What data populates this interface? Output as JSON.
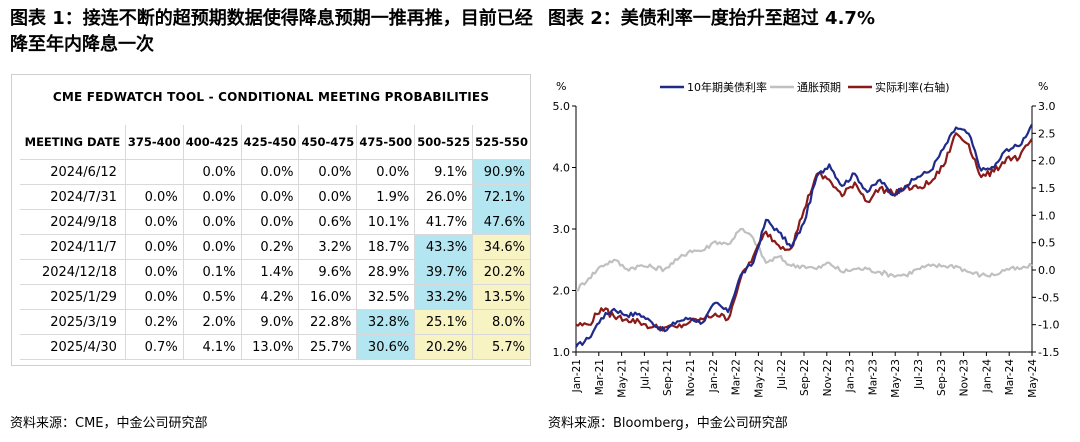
{
  "fig1": {
    "title": "图表 1：接连不断的超预期数据使得降息预期一推再推，目前已经降至年内降息一次",
    "tool_title": "CME FEDWATCH TOOL - CONDITIONAL MEETING PROBABILITIES",
    "source": "资料来源：CME，中金公司研究部",
    "headers": [
      "MEETING DATE",
      "375-400",
      "400-425",
      "425-450",
      "450-475",
      "475-500",
      "500-525",
      "525-550"
    ],
    "rows": [
      {
        "date": "2024/6/12",
        "values": [
          "",
          "0.0%",
          "0.0%",
          "0.0%",
          "0.0%",
          "9.1%",
          "90.9%"
        ]
      },
      {
        "date": "2024/7/31",
        "values": [
          "0.0%",
          "0.0%",
          "0.0%",
          "0.0%",
          "1.9%",
          "26.0%",
          "72.1%"
        ]
      },
      {
        "date": "2024/9/18",
        "values": [
          "0.0%",
          "0.0%",
          "0.0%",
          "0.6%",
          "10.1%",
          "41.7%",
          "47.6%"
        ]
      },
      {
        "date": "2024/11/7",
        "values": [
          "0.0%",
          "0.0%",
          "0.2%",
          "3.2%",
          "18.7%",
          "43.3%",
          "34.6%"
        ]
      },
      {
        "date": "2024/12/18",
        "values": [
          "0.0%",
          "0.1%",
          "1.4%",
          "9.6%",
          "28.9%",
          "39.7%",
          "20.2%"
        ]
      },
      {
        "date": "2025/1/29",
        "values": [
          "0.0%",
          "0.5%",
          "4.2%",
          "16.0%",
          "32.5%",
          "33.2%",
          "13.5%"
        ]
      },
      {
        "date": "2025/3/19",
        "values": [
          "0.2%",
          "2.0%",
          "9.0%",
          "22.8%",
          "32.8%",
          "25.1%",
          "8.0%"
        ]
      },
      {
        "date": "2025/4/30",
        "values": [
          "0.7%",
          "4.1%",
          "13.0%",
          "25.7%",
          "30.6%",
          "20.2%",
          "5.7%"
        ]
      }
    ],
    "highlight_colors": {
      "blue": "#b4e6f2",
      "yellow": "#f8f3c3"
    },
    "highlights": {
      "blue": [
        [
          0,
          6
        ],
        [
          1,
          6
        ],
        [
          2,
          6
        ],
        [
          3,
          5
        ],
        [
          4,
          5
        ],
        [
          5,
          5
        ],
        [
          6,
          4
        ],
        [
          7,
          4
        ]
      ],
      "yellow": [
        [
          3,
          6
        ],
        [
          4,
          6
        ],
        [
          5,
          6
        ],
        [
          6,
          5
        ],
        [
          6,
          6
        ],
        [
          7,
          5
        ],
        [
          7,
          6
        ]
      ]
    }
  },
  "fig2": {
    "title": "图表 2：美债利率一度抬升至超过 4.7%",
    "source": "资料来源：Bloomberg，中金公司研究部"
  },
  "chart_data": {
    "type": "line",
    "left_unit": "%",
    "right_unit": "%",
    "ylim_left": [
      1.0,
      5.0
    ],
    "yticks_left": [
      "1.0",
      "2.0",
      "3.0",
      "4.0",
      "5.0"
    ],
    "ylim_right": [
      -1.5,
      3.0
    ],
    "yticks_right": [
      "-1.5",
      "-1.0",
      "-0.5",
      "0.0",
      "0.5",
      "1.0",
      "1.5",
      "2.0",
      "2.5",
      "3.0"
    ],
    "x_labels": [
      "Jan-21",
      "Mar-21",
      "May-21",
      "Jul-21",
      "Sep-21",
      "Nov-21",
      "Jan-22",
      "Mar-22",
      "May-22",
      "Jul-22",
      "Sep-22",
      "Nov-22",
      "Jan-23",
      "Mar-23",
      "May-23",
      "Jul-23",
      "Sep-23",
      "Nov-23",
      "Jan-24",
      "Mar-24",
      "May-24"
    ],
    "grid": false,
    "legend_position": "top",
    "series": [
      {
        "name": "10年期美债利率",
        "axis": "left",
        "color": "#1f2a8a",
        "values": [
          1.08,
          1.22,
          1.55,
          1.7,
          1.6,
          1.62,
          1.48,
          1.34,
          1.5,
          1.55,
          1.48,
          1.8,
          1.65,
          2.25,
          2.45,
          3.15,
          2.95,
          2.7,
          3.1,
          3.85,
          4.05,
          3.7,
          3.9,
          3.6,
          3.8,
          3.55,
          3.7,
          3.85,
          3.95,
          4.3,
          4.65,
          4.55,
          3.95,
          4.0,
          4.3,
          4.35,
          4.7
        ]
      },
      {
        "name": "通胀预期",
        "axis": "left",
        "color": "#c0c0c0",
        "values": [
          2.0,
          2.2,
          2.4,
          2.5,
          2.35,
          2.4,
          2.38,
          2.35,
          2.5,
          2.65,
          2.65,
          2.8,
          2.75,
          3.0,
          2.85,
          2.45,
          2.55,
          2.4,
          2.4,
          2.35,
          2.45,
          2.3,
          2.35,
          2.35,
          2.3,
          2.25,
          2.25,
          2.35,
          2.4,
          2.4,
          2.4,
          2.3,
          2.25,
          2.25,
          2.35,
          2.35,
          2.4
        ]
      },
      {
        "name": "实际利率(右轴)",
        "axis": "right",
        "color": "#8b1a1a",
        "values": [
          -1.0,
          -1.0,
          -0.7,
          -0.85,
          -0.9,
          -0.95,
          -1.05,
          -1.05,
          -1.05,
          -0.95,
          -0.9,
          -0.8,
          -0.9,
          -0.15,
          0.25,
          0.7,
          0.45,
          0.4,
          1.1,
          1.75,
          1.65,
          1.35,
          1.6,
          1.25,
          1.5,
          1.4,
          1.5,
          1.5,
          1.6,
          1.9,
          2.5,
          2.3,
          1.7,
          1.8,
          2.05,
          2.05,
          2.4
        ]
      }
    ]
  }
}
